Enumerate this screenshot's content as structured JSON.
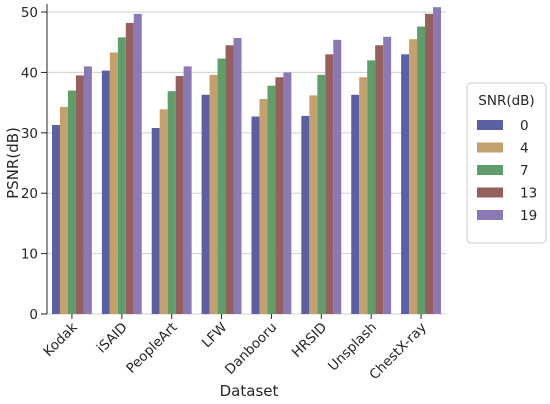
{
  "chart_data": {
    "type": "bar",
    "title": "",
    "xlabel": "Dataset",
    "ylabel": "PSNR(dB)",
    "ylim": [
      0,
      51
    ],
    "yticks": [
      0,
      10,
      20,
      30,
      40,
      50
    ],
    "grid": "horizontal",
    "legend_title": "SNR(dB)",
    "legend_position": "right",
    "categories": [
      "Kodak",
      "iSAID",
      "PeopleArt",
      "LFW",
      "Danbooru",
      "HRSID",
      "Unsplash",
      "ChestX-ray"
    ],
    "series": [
      {
        "name": "0",
        "color": "#5b60a5",
        "values": [
          31.3,
          40.3,
          30.8,
          36.3,
          32.7,
          32.8,
          36.3,
          43.0
        ]
      },
      {
        "name": "4",
        "color": "#c4a06d",
        "values": [
          34.3,
          43.3,
          33.9,
          39.6,
          35.6,
          36.2,
          39.2,
          45.5
        ]
      },
      {
        "name": "7",
        "color": "#5f9e6b",
        "values": [
          37.0,
          45.8,
          36.9,
          42.3,
          37.8,
          39.6,
          42.0,
          47.6
        ]
      },
      {
        "name": "13",
        "color": "#955f5d",
        "values": [
          39.5,
          48.2,
          39.4,
          44.5,
          39.2,
          43.0,
          44.5,
          49.7
        ]
      },
      {
        "name": "19",
        "color": "#8a79b5",
        "values": [
          41.0,
          49.7,
          41.0,
          45.7,
          40.0,
          45.4,
          45.9,
          50.8
        ]
      }
    ]
  }
}
